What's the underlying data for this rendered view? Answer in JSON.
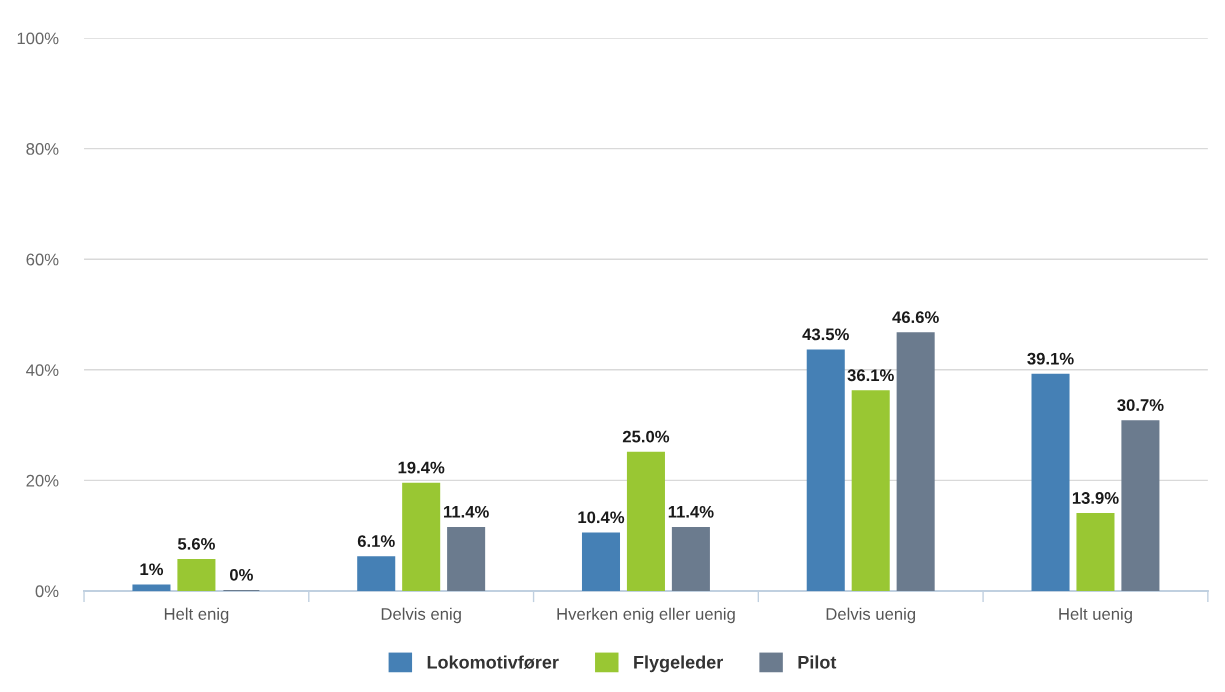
{
  "chart_data": {
    "type": "bar",
    "categories": [
      "Helt enig",
      "Delvis enig",
      "Hverken enig eller uenig",
      "Delvis uenig",
      "Helt uenig"
    ],
    "series": [
      {
        "name": "Lokomotivfører",
        "color": "#4580b5",
        "values": [
          1,
          6.1,
          10.4,
          43.5,
          39.1
        ],
        "value_labels": [
          "1%",
          "6.1%",
          "10.4%",
          "43.5%",
          "39.1%"
        ]
      },
      {
        "name": "Flygeleder",
        "color": "#99c733",
        "values": [
          5.6,
          19.4,
          25.0,
          36.1,
          13.9
        ],
        "value_labels": [
          "5.6%",
          "19.4%",
          "25.0%",
          "36.1%",
          "13.9%"
        ]
      },
      {
        "name": "Pilot",
        "color": "#6b7b8e",
        "values": [
          0,
          11.4,
          11.4,
          46.6,
          30.7
        ],
        "value_labels": [
          "0%",
          "11.4%",
          "11.4%",
          "46.6%",
          "30.7%"
        ]
      }
    ],
    "ylim": [
      0,
      100
    ],
    "yticks": [
      {
        "value": 0,
        "label": "0%"
      },
      {
        "value": 20,
        "label": "20%"
      },
      {
        "value": 40,
        "label": "40%"
      },
      {
        "value": 60,
        "label": "60%"
      },
      {
        "value": 80,
        "label": "80%"
      },
      {
        "value": 100,
        "label": "100%"
      }
    ],
    "grid": "y",
    "legend": "bottom"
  }
}
